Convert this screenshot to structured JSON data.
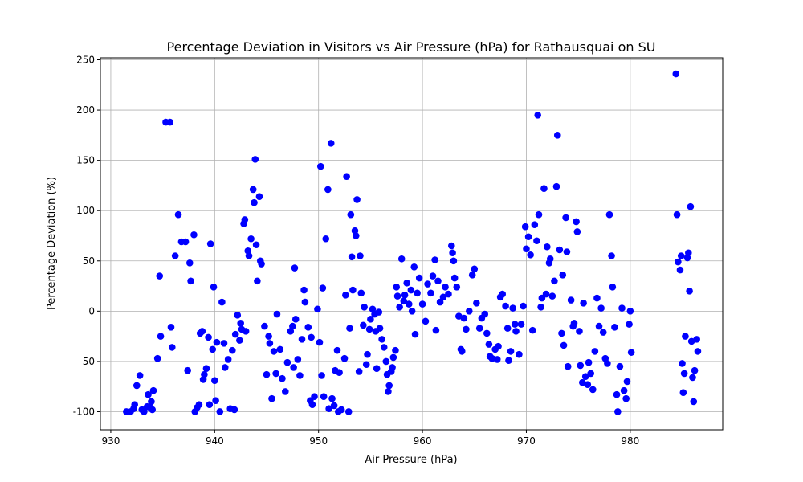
{
  "chart_data": {
    "type": "scatter",
    "title": "Percentage Deviation in Visitors vs Air Pressure (hPa) for Rathausquai on SU",
    "xlabel": "Air Pressure (hPa)",
    "ylabel": "Percentage Deviation (%)",
    "xlim": [
      929.0,
      988.9
    ],
    "ylim": [
      -118,
      252
    ],
    "xticks": [
      930,
      940,
      950,
      960,
      970,
      980
    ],
    "yticks": [
      -100,
      -50,
      0,
      50,
      100,
      150,
      200,
      250
    ],
    "grid": true,
    "marker_color": "#0000ff",
    "points": [
      [
        931.5,
        -100
      ],
      [
        931.9,
        -100
      ],
      [
        932.2,
        -97
      ],
      [
        932.3,
        -93
      ],
      [
        932.5,
        -74
      ],
      [
        932.8,
        -64
      ],
      [
        933.0,
        -98
      ],
      [
        933.2,
        -100
      ],
      [
        933.5,
        -95
      ],
      [
        933.6,
        -83
      ],
      [
        933.8,
        -96
      ],
      [
        933.9,
        -90
      ],
      [
        934.0,
        -98
      ],
      [
        934.1,
        -79
      ],
      [
        934.5,
        -47
      ],
      [
        934.7,
        35
      ],
      [
        934.8,
        -25
      ],
      [
        935.3,
        188
      ],
      [
        935.7,
        188
      ],
      [
        935.8,
        -16
      ],
      [
        935.9,
        -36
      ],
      [
        936.2,
        55
      ],
      [
        936.5,
        96
      ],
      [
        936.8,
        69
      ],
      [
        937.2,
        69
      ],
      [
        937.4,
        -59
      ],
      [
        937.6,
        48
      ],
      [
        937.7,
        30
      ],
      [
        938.0,
        76
      ],
      [
        938.1,
        -100
      ],
      [
        938.3,
        -96
      ],
      [
        938.5,
        -93
      ],
      [
        938.6,
        -22
      ],
      [
        938.8,
        -20
      ],
      [
        938.9,
        -68
      ],
      [
        939.0,
        -63
      ],
      [
        939.2,
        -57
      ],
      [
        939.4,
        -26
      ],
      [
        939.5,
        -93
      ],
      [
        939.6,
        67
      ],
      [
        939.8,
        -38
      ],
      [
        939.9,
        24
      ],
      [
        940.0,
        -69
      ],
      [
        940.1,
        -89
      ],
      [
        940.2,
        -31
      ],
      [
        940.5,
        -100
      ],
      [
        940.7,
        9
      ],
      [
        940.9,
        -32
      ],
      [
        941.0,
        -56
      ],
      [
        941.3,
        -48
      ],
      [
        941.5,
        -97
      ],
      [
        941.7,
        -39
      ],
      [
        941.9,
        -98
      ],
      [
        942.0,
        -23
      ],
      [
        942.2,
        -4
      ],
      [
        942.4,
        -29
      ],
      [
        942.5,
        -12
      ],
      [
        942.6,
        -18
      ],
      [
        942.8,
        87
      ],
      [
        942.9,
        91
      ],
      [
        943.0,
        -20
      ],
      [
        943.2,
        60
      ],
      [
        943.3,
        55
      ],
      [
        943.5,
        72
      ],
      [
        943.7,
        121
      ],
      [
        943.8,
        108
      ],
      [
        943.9,
        151
      ],
      [
        944.0,
        66
      ],
      [
        944.1,
        30
      ],
      [
        944.3,
        114
      ],
      [
        944.4,
        50
      ],
      [
        944.5,
        47
      ],
      [
        944.8,
        -15
      ],
      [
        945.0,
        -63
      ],
      [
        945.2,
        -25
      ],
      [
        945.3,
        -32
      ],
      [
        945.5,
        -87
      ],
      [
        945.7,
        -40
      ],
      [
        945.9,
        -62
      ],
      [
        946.0,
        -3
      ],
      [
        946.3,
        -38
      ],
      [
        946.5,
        -67
      ],
      [
        946.8,
        -80
      ],
      [
        947.0,
        -51
      ],
      [
        947.3,
        -20
      ],
      [
        947.5,
        -15
      ],
      [
        947.6,
        -56
      ],
      [
        947.7,
        43
      ],
      [
        947.8,
        -8
      ],
      [
        948.0,
        -48
      ],
      [
        948.2,
        -64
      ],
      [
        948.4,
        -28
      ],
      [
        948.6,
        21
      ],
      [
        948.7,
        9
      ],
      [
        949.0,
        -16
      ],
      [
        949.2,
        -89
      ],
      [
        949.3,
        -26
      ],
      [
        949.4,
        -93
      ],
      [
        949.6,
        -85
      ],
      [
        949.9,
        2
      ],
      [
        950.1,
        -31
      ],
      [
        950.2,
        144
      ],
      [
        950.3,
        -64
      ],
      [
        950.4,
        23
      ],
      [
        950.5,
        -85
      ],
      [
        950.7,
        72
      ],
      [
        950.9,
        121
      ],
      [
        951.0,
        -97
      ],
      [
        951.2,
        167
      ],
      [
        951.3,
        -87
      ],
      [
        951.5,
        -94
      ],
      [
        951.6,
        -59
      ],
      [
        951.8,
        -39
      ],
      [
        951.9,
        -100
      ],
      [
        952.0,
        -61
      ],
      [
        952.2,
        -98
      ],
      [
        952.5,
        -47
      ],
      [
        952.6,
        16
      ],
      [
        952.7,
        134
      ],
      [
        952.9,
        -100
      ],
      [
        953.0,
        -17
      ],
      [
        953.1,
        96
      ],
      [
        953.2,
        54
      ],
      [
        953.3,
        21
      ],
      [
        953.5,
        80
      ],
      [
        953.6,
        75
      ],
      [
        953.7,
        111
      ],
      [
        953.9,
        -60
      ],
      [
        954.0,
        55
      ],
      [
        954.1,
        18
      ],
      [
        954.3,
        -14
      ],
      [
        954.4,
        4
      ],
      [
        954.6,
        -53
      ],
      [
        954.7,
        -43
      ],
      [
        954.9,
        -18
      ],
      [
        955.0,
        -8
      ],
      [
        955.2,
        2
      ],
      [
        955.4,
        -3
      ],
      [
        955.5,
        -20
      ],
      [
        955.6,
        -57
      ],
      [
        955.8,
        -1
      ],
      [
        955.9,
        -17
      ],
      [
        956.1,
        -28
      ],
      [
        956.3,
        -36
      ],
      [
        956.5,
        -50
      ],
      [
        956.6,
        -63
      ],
      [
        956.7,
        -80
      ],
      [
        956.8,
        -74
      ],
      [
        957.0,
        -60
      ],
      [
        957.1,
        -56
      ],
      [
        957.2,
        -46
      ],
      [
        957.4,
        -39
      ],
      [
        957.5,
        24
      ],
      [
        957.6,
        15
      ],
      [
        957.8,
        4
      ],
      [
        958.0,
        52
      ],
      [
        958.2,
        10
      ],
      [
        958.3,
        16
      ],
      [
        958.5,
        28
      ],
      [
        958.7,
        7
      ],
      [
        958.9,
        21
      ],
      [
        959.0,
        0
      ],
      [
        959.2,
        44
      ],
      [
        959.3,
        -23
      ],
      [
        959.5,
        18
      ],
      [
        959.7,
        33
      ],
      [
        960.0,
        7
      ],
      [
        960.3,
        -10
      ],
      [
        960.5,
        27
      ],
      [
        960.8,
        18
      ],
      [
        961.0,
        35
      ],
      [
        961.2,
        51
      ],
      [
        961.3,
        -19
      ],
      [
        961.5,
        30
      ],
      [
        961.7,
        9
      ],
      [
        962.0,
        14
      ],
      [
        962.2,
        24
      ],
      [
        962.5,
        17
      ],
      [
        962.8,
        65
      ],
      [
        962.9,
        58
      ],
      [
        963.0,
        50
      ],
      [
        963.1,
        33
      ],
      [
        963.3,
        24
      ],
      [
        963.5,
        -5
      ],
      [
        963.7,
        -38
      ],
      [
        963.8,
        -40
      ],
      [
        964.0,
        -7
      ],
      [
        964.2,
        -18
      ],
      [
        964.5,
        0
      ],
      [
        964.8,
        36
      ],
      [
        965.0,
        42
      ],
      [
        965.2,
        8
      ],
      [
        965.5,
        -17
      ],
      [
        965.7,
        -7
      ],
      [
        966.0,
        -3
      ],
      [
        966.2,
        -22
      ],
      [
        966.4,
        -33
      ],
      [
        966.5,
        -45
      ],
      [
        966.7,
        -47
      ],
      [
        967.0,
        -38
      ],
      [
        967.2,
        -48
      ],
      [
        967.3,
        -35
      ],
      [
        967.5,
        14
      ],
      [
        967.7,
        17
      ],
      [
        968.0,
        5
      ],
      [
        968.2,
        -17
      ],
      [
        968.3,
        -49
      ],
      [
        968.5,
        -40
      ],
      [
        968.7,
        3
      ],
      [
        968.9,
        -13
      ],
      [
        969.0,
        -20
      ],
      [
        969.3,
        -43
      ],
      [
        969.5,
        -13
      ],
      [
        969.7,
        5
      ],
      [
        969.9,
        84
      ],
      [
        970.0,
        62
      ],
      [
        970.2,
        74
      ],
      [
        970.4,
        56
      ],
      [
        970.6,
        -19
      ],
      [
        970.8,
        86
      ],
      [
        971.0,
        70
      ],
      [
        971.1,
        195
      ],
      [
        971.2,
        96
      ],
      [
        971.4,
        4
      ],
      [
        971.5,
        13
      ],
      [
        971.7,
        122
      ],
      [
        971.9,
        17
      ],
      [
        972.0,
        64
      ],
      [
        972.2,
        48
      ],
      [
        972.3,
        52
      ],
      [
        972.5,
        15
      ],
      [
        972.7,
        30
      ],
      [
        972.9,
        124
      ],
      [
        973.0,
        175
      ],
      [
        973.2,
        61
      ],
      [
        973.4,
        -22
      ],
      [
        973.5,
        36
      ],
      [
        973.6,
        -34
      ],
      [
        973.8,
        93
      ],
      [
        973.9,
        59
      ],
      [
        974.0,
        -55
      ],
      [
        974.3,
        11
      ],
      [
        974.5,
        -15
      ],
      [
        974.6,
        -12
      ],
      [
        974.8,
        89
      ],
      [
        974.9,
        79
      ],
      [
        975.1,
        -20
      ],
      [
        975.2,
        -54
      ],
      [
        975.4,
        -71
      ],
      [
        975.5,
        8
      ],
      [
        975.7,
        -65
      ],
      [
        975.9,
        -73
      ],
      [
        976.0,
        -51
      ],
      [
        976.2,
        -62
      ],
      [
        976.4,
        -78
      ],
      [
        976.6,
        -40
      ],
      [
        976.8,
        13
      ],
      [
        977.0,
        -15
      ],
      [
        977.2,
        3
      ],
      [
        977.4,
        -21
      ],
      [
        977.6,
        -47
      ],
      [
        977.8,
        -52
      ],
      [
        978.0,
        96
      ],
      [
        978.2,
        55
      ],
      [
        978.3,
        24
      ],
      [
        978.5,
        -16
      ],
      [
        978.7,
        -83
      ],
      [
        978.8,
        -100
      ],
      [
        979.0,
        -55
      ],
      [
        979.2,
        3
      ],
      [
        979.4,
        -79
      ],
      [
        979.6,
        -87
      ],
      [
        979.7,
        -70
      ],
      [
        979.9,
        -13
      ],
      [
        980.0,
        0
      ],
      [
        980.1,
        -41
      ],
      [
        984.4,
        236
      ],
      [
        984.5,
        96
      ],
      [
        984.6,
        49
      ],
      [
        984.8,
        41
      ],
      [
        984.9,
        55
      ],
      [
        985.0,
        -52
      ],
      [
        985.1,
        -81
      ],
      [
        985.2,
        -62
      ],
      [
        985.3,
        -25
      ],
      [
        985.5,
        53
      ],
      [
        985.6,
        58
      ],
      [
        985.7,
        20
      ],
      [
        985.8,
        104
      ],
      [
        985.9,
        -30
      ],
      [
        986.0,
        -66
      ],
      [
        986.1,
        -90
      ],
      [
        986.2,
        -59
      ],
      [
        986.4,
        -28
      ],
      [
        986.5,
        -40
      ]
    ]
  }
}
